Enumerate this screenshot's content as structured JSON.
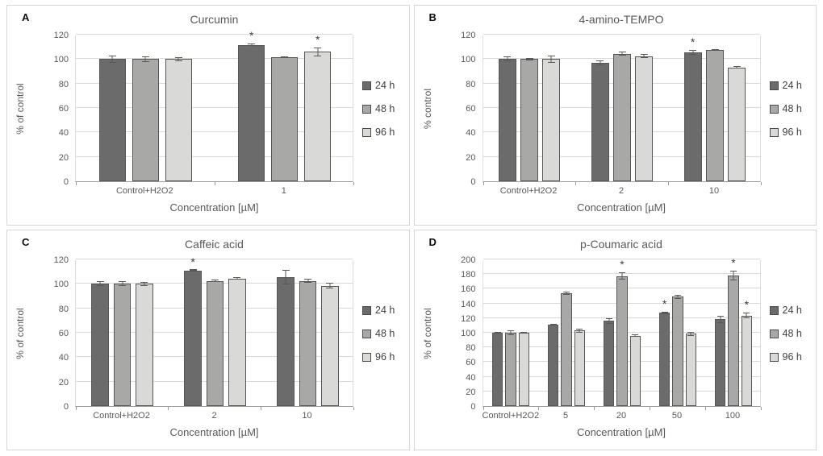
{
  "colors": {
    "series_colors": [
      "#6b6b6b",
      "#a8a8a6",
      "#d9d9d7"
    ],
    "bar_border": "#565656",
    "gridline": "#d9d9d9",
    "axis_line": "#9b9b9b",
    "axis_text": "#595959",
    "title_text": "#595959",
    "legend_text": "#404040",
    "panel_border": "#d6d6d6",
    "significance_marker": "#3f3f3f",
    "background": "#ffffff"
  },
  "chart_data": [
    {
      "type": "bar",
      "panel": "A",
      "title": "Curcumin",
      "xlabel": "Concentration [µM]",
      "ylabel": "% of control",
      "ylim": [
        0,
        120
      ],
      "ytick_step": 20,
      "grid": true,
      "legend_position": "right",
      "legend": [
        "24 h",
        "48 h",
        "96 h"
      ],
      "categories": [
        "Control+H2O2",
        "1"
      ],
      "series": [
        {
          "name": "24 h",
          "values": [
            100,
            111.5
          ],
          "errors": [
            3,
            1
          ]
        },
        {
          "name": "48 h",
          "values": [
            100,
            101.5
          ],
          "errors": [
            2.5,
            0.5
          ]
        },
        {
          "name": "96 h",
          "values": [
            100,
            106
          ],
          "errors": [
            1.5,
            3.5
          ]
        }
      ],
      "significance": [
        {
          "category": "1",
          "series": "24 h",
          "marker": "*"
        },
        {
          "category": "1",
          "series": "96 h",
          "marker": "*"
        }
      ]
    },
    {
      "type": "bar",
      "panel": "B",
      "title": "4-amino-TEMPO",
      "xlabel": "Concentration [µM]",
      "ylabel": "% control",
      "ylim": [
        0,
        120
      ],
      "ytick_step": 20,
      "grid": true,
      "legend_position": "right",
      "legend": [
        "24 h",
        "48 h",
        "96 h"
      ],
      "categories": [
        "Control+H2O2",
        "2",
        "10"
      ],
      "series": [
        {
          "name": "24 h",
          "values": [
            100,
            97,
            105.5
          ],
          "errors": [
            2,
            2,
            2
          ]
        },
        {
          "name": "48 h",
          "values": [
            100,
            104.5,
            107.5
          ],
          "errors": [
            1,
            1.5,
            0.5
          ]
        },
        {
          "name": "96 h",
          "values": [
            100,
            102.5,
            93
          ],
          "errors": [
            3,
            1.5,
            1
          ]
        }
      ],
      "significance": [
        {
          "category": "10",
          "series": "24 h",
          "marker": "*"
        }
      ]
    },
    {
      "type": "bar",
      "panel": "C",
      "title": "Caffeic acid",
      "xlabel": "Concentration [µM]",
      "ylabel": "% of control",
      "ylim": [
        0,
        120
      ],
      "ytick_step": 20,
      "grid": true,
      "legend_position": "right",
      "legend": [
        "24 h",
        "48 h",
        "96 h"
      ],
      "categories": [
        "Control+H2O2",
        "2",
        "10"
      ],
      "series": [
        {
          "name": "24 h",
          "values": [
            100,
            111,
            105.5
          ],
          "errors": [
            2,
            0.5,
            6
          ]
        },
        {
          "name": "48 h",
          "values": [
            100,
            102.5,
            102.5
          ],
          "errors": [
            2,
            1,
            1.5
          ]
        },
        {
          "name": "96 h",
          "values": [
            100,
            104.5,
            98.5
          ],
          "errors": [
            1.5,
            1,
            2.5
          ]
        }
      ],
      "significance": [
        {
          "category": "2",
          "series": "24 h",
          "marker": "*"
        }
      ]
    },
    {
      "type": "bar",
      "panel": "D",
      "title": "p-Coumaric acid",
      "xlabel": "Concentration [µM]",
      "ylabel": "% of control",
      "ylim": [
        0,
        200
      ],
      "ytick_step": 20,
      "grid": true,
      "legend_position": "right",
      "legend": [
        "24 h",
        "48 h",
        "96 h"
      ],
      "categories": [
        "Control+H2O2",
        "5",
        "20",
        "50",
        "100"
      ],
      "series": [
        {
          "name": "24 h",
          "values": [
            100,
            111,
            116,
            127,
            118.5
          ],
          "errors": [
            1,
            1,
            4,
            2,
            5
          ]
        },
        {
          "name": "48 h",
          "values": [
            100,
            154,
            177,
            149,
            178
          ],
          "errors": [
            3,
            2,
            5,
            3,
            7
          ]
        },
        {
          "name": "96 h",
          "values": [
            100,
            103,
            96,
            98.5,
            123.5
          ],
          "errors": [
            1.5,
            2.5,
            2,
            3,
            4
          ]
        }
      ],
      "significance": [
        {
          "category": "20",
          "series": "48 h",
          "marker": "*"
        },
        {
          "category": "50",
          "series": "24 h",
          "marker": "*"
        },
        {
          "category": "100",
          "series": "48 h",
          "marker": "*"
        },
        {
          "category": "100",
          "series": "96 h",
          "marker": "*"
        }
      ]
    }
  ]
}
